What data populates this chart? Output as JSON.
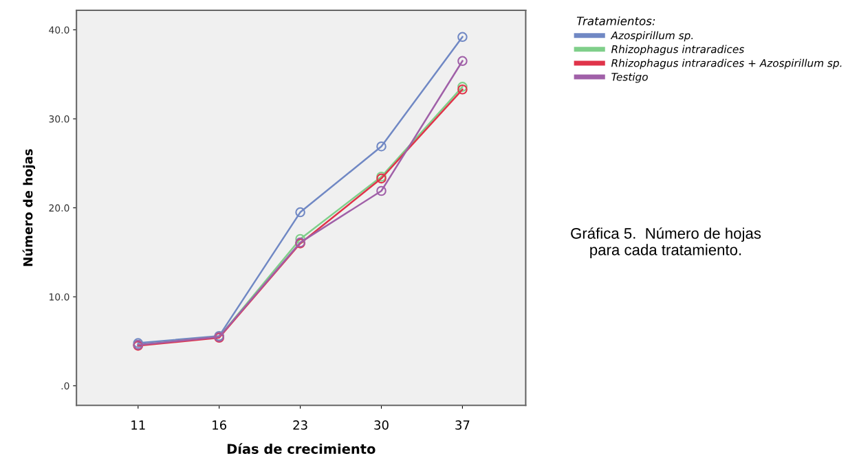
{
  "chart_data": {
    "type": "line",
    "xlabel": "Días de crecimiento",
    "ylabel": "Número de hojas",
    "legend_title": "Tratamientos:",
    "categories": [
      "11",
      "16",
      "23",
      "30",
      "37"
    ],
    "series": [
      {
        "name": "Azospirillum sp.",
        "color": "#7088c4",
        "values": [
          4.8,
          5.6,
          19.5,
          26.9,
          39.2
        ]
      },
      {
        "name": "Rhizophagus intraradices",
        "color": "#7fcf8a",
        "values": [
          4.6,
          5.5,
          16.5,
          23.5,
          33.6
        ]
      },
      {
        "name": "Rhizophagus intraradices + Azospirillum sp.",
        "color": "#e0344a",
        "values": [
          4.5,
          5.4,
          16.0,
          23.3,
          33.3
        ]
      },
      {
        "name": "Testigo",
        "color": "#a060a8",
        "values": [
          4.6,
          5.5,
          16.1,
          21.9,
          36.5
        ]
      }
    ],
    "ylim": [
      -2.2,
      42.2
    ],
    "yticks": [
      {
        "value": 0,
        "label": ".0"
      },
      {
        "value": 10,
        "label": "10.0"
      },
      {
        "value": 20,
        "label": "20.0"
      },
      {
        "value": 30,
        "label": "30.0"
      },
      {
        "value": 40,
        "label": "40.0"
      }
    ],
    "grid": false,
    "legend": "top right",
    "marker": "circle",
    "line_style": "solid",
    "annotations": [
      "Gráfica 5.  Número de hojas\npara cada tratamiento."
    ]
  }
}
